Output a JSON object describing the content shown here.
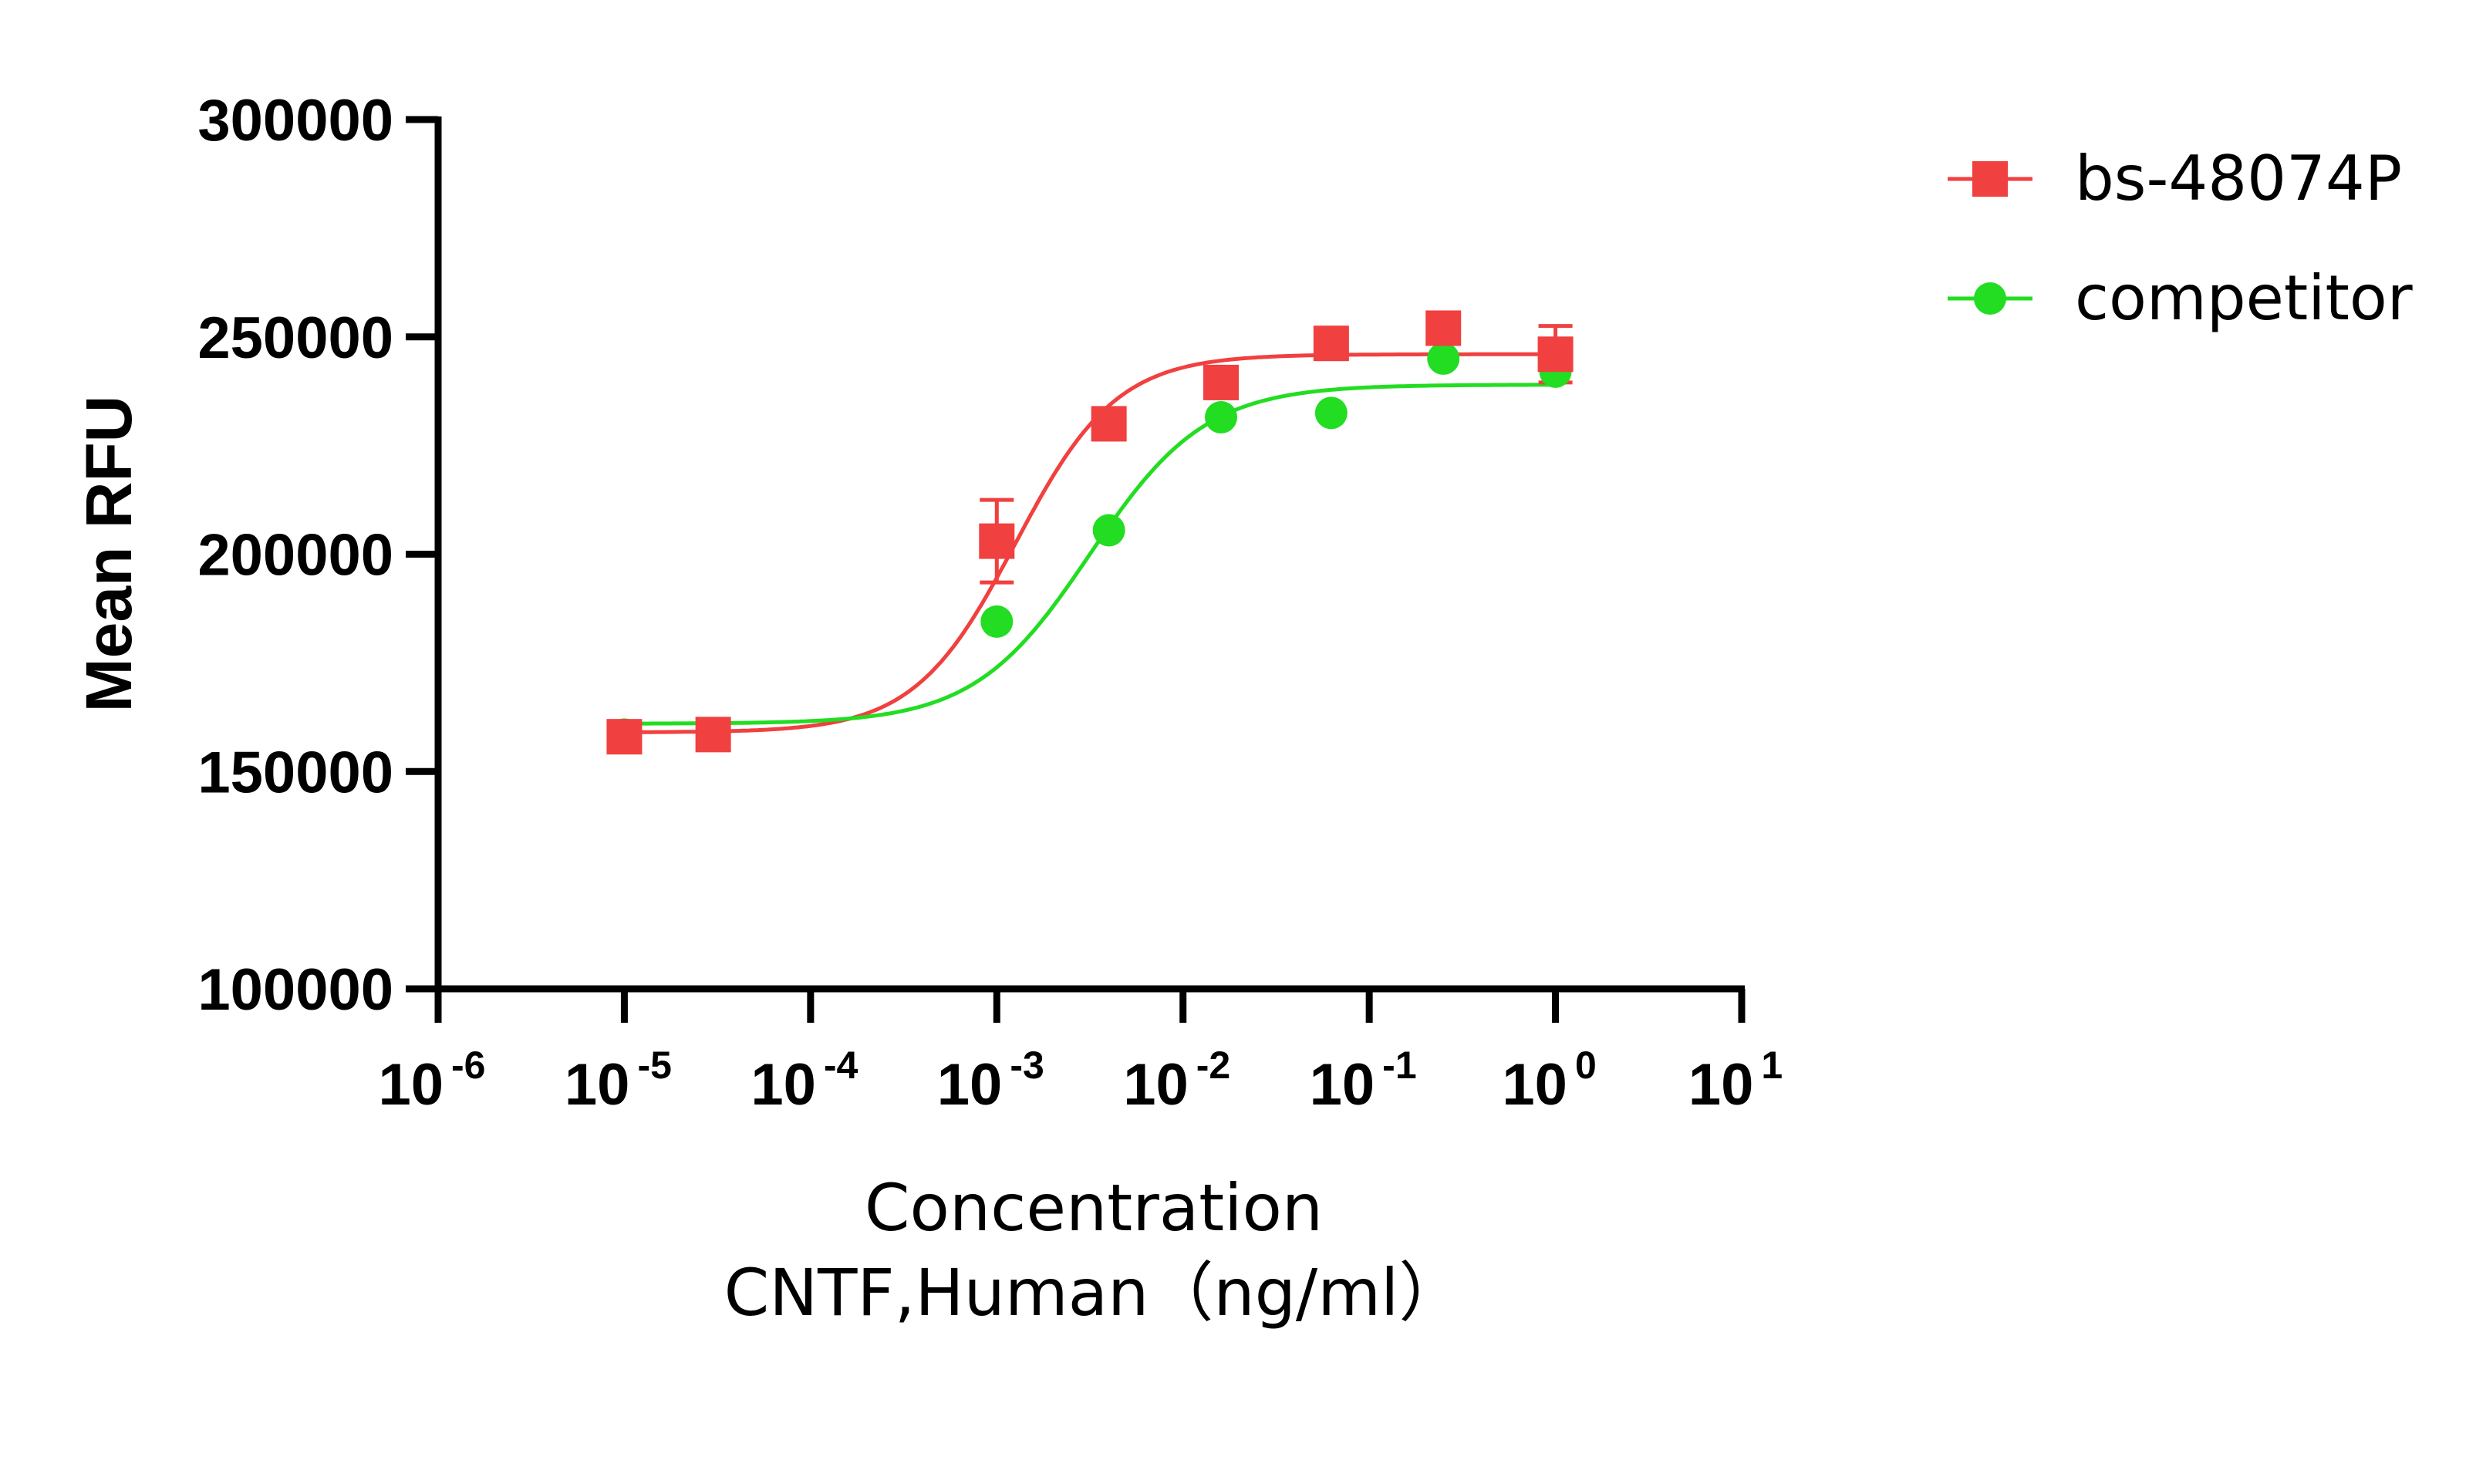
{
  "chart_data": {
    "type": "scatter",
    "title": "",
    "xlabel_line1": "Concentration",
    "xlabel_line2": "CNTF,Human（ng/ml）",
    "ylabel": "Mean RFU",
    "x_scale": "log10",
    "xlim": [
      1e-06,
      10
    ],
    "ylim": [
      100000,
      300000
    ],
    "x_tick_base": "10",
    "x_tick_exponents": [
      "-6",
      "-5",
      "-4",
      "-3",
      "-2",
      "-1",
      "0",
      "1"
    ],
    "y_ticks": [
      "100000",
      "150000",
      "200000",
      "250000",
      "300000"
    ],
    "y_tick_values": [
      100000,
      150000,
      200000,
      250000,
      300000
    ],
    "grid": false,
    "legend_position": "top-right",
    "series": [
      {
        "name": "bs-48074P",
        "color": "#f0403f",
        "marker": "square",
        "x": [
          1e-05,
          3e-05,
          0.001,
          0.004,
          0.016,
          0.0625,
          0.25,
          1
        ],
        "y": [
          158000,
          158500,
          203000,
          230000,
          239500,
          248500,
          252000,
          246000
        ],
        "error": [
          0,
          0,
          9500,
          0,
          0,
          0,
          3000,
          6500
        ],
        "fit": {
          "model": "4PL",
          "bottom": 159000,
          "top": 246000,
          "logEC50": -2.9,
          "hill": 1.6
        }
      },
      {
        "name": "competitor",
        "color": "#22dd22",
        "marker": "circle",
        "x": [
          1e-05,
          3e-05,
          0.001,
          0.004,
          0.016,
          0.0625,
          0.25,
          1
        ],
        "y": [
          158500,
          158500,
          184500,
          205500,
          231500,
          232500,
          245000,
          242000
        ],
        "error": [
          0,
          0,
          0,
          0,
          0,
          0,
          0,
          0
        ],
        "fit": {
          "model": "4PL",
          "bottom": 161000,
          "top": 239000,
          "logEC50": -2.5,
          "hill": 1.4
        }
      }
    ]
  }
}
